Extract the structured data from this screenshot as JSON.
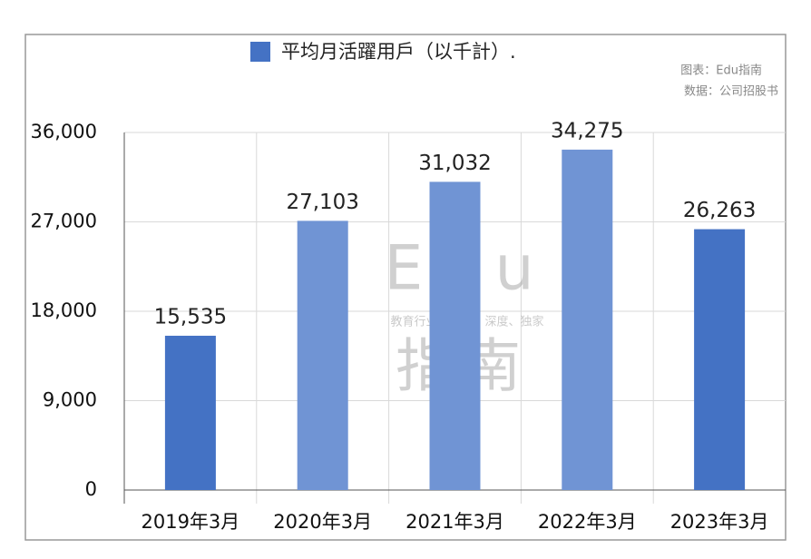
{
  "chart_data": {
    "type": "bar",
    "legend_label": "平均月活躍用戶（以千計）.",
    "source_lines": [
      "图表：Edu指南",
      "数据：公司招股书"
    ],
    "watermark": {
      "brand": "Edu",
      "name": "指南",
      "tagline": "教育行业，前沿、深度、独家"
    },
    "categories": [
      "2019年3月",
      "2020年3月",
      "2021年3月",
      "2022年3月",
      "2023年3月"
    ],
    "values": [
      15535,
      27103,
      31032,
      34275,
      26263
    ],
    "value_labels": [
      "15,535",
      "27,103",
      "31,032",
      "34,275",
      "26,263"
    ],
    "colors": [
      "#4472c4",
      "#7094d4",
      "#7094d4",
      "#7094d4",
      "#4472c4"
    ],
    "ylim": [
      0,
      36000
    ],
    "yticks": [
      0,
      {
        "value": 9000,
        "label": "9,000"
      },
      {
        "value": 18000,
        "label": "18,000"
      },
      {
        "value": 27000,
        "label": "27,000"
      },
      {
        "value": 36000,
        "label": "36,000"
      }
    ],
    "grid": true
  }
}
